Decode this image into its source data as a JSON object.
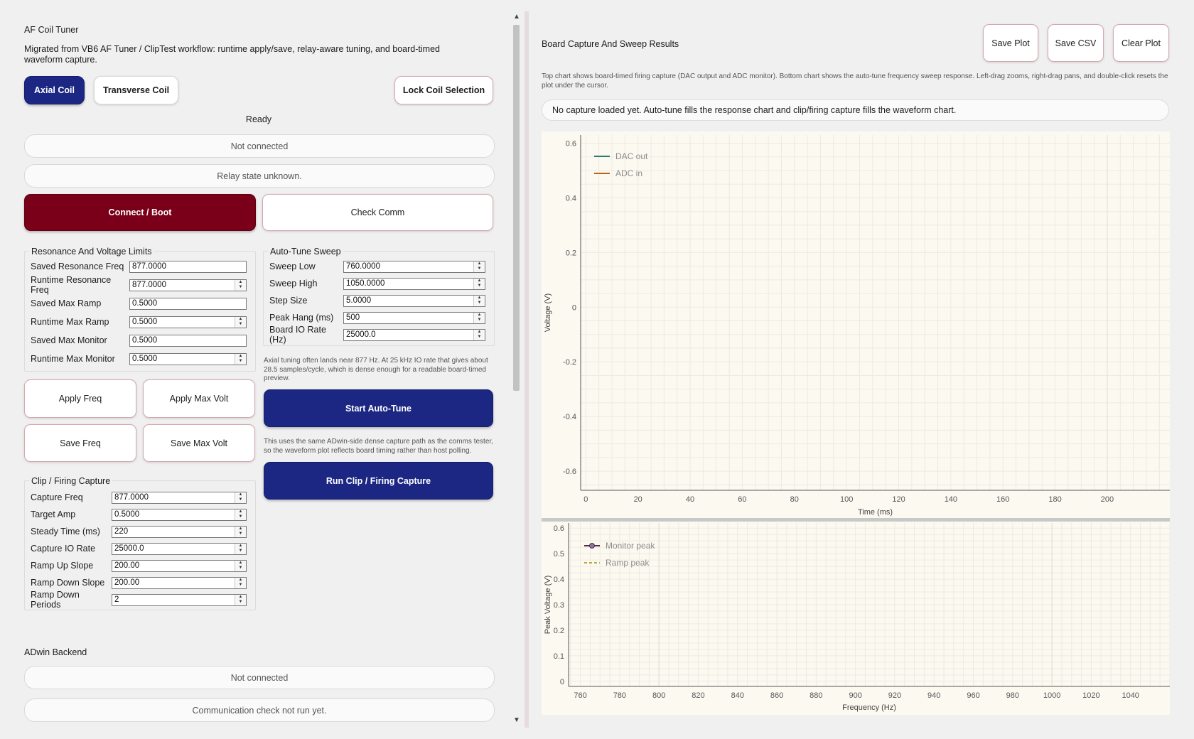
{
  "app": {
    "title": "AF Coil Tuner",
    "description": "Migrated from VB6 AF Tuner / ClipTest workflow: runtime apply/save, relay-aware tuning, and board-timed waveform capture."
  },
  "coil": {
    "axial_label": "Axial Coil",
    "transverse_label": "Transverse Coil",
    "lock_label": "Lock Coil Selection",
    "selected": "Axial Coil"
  },
  "status": {
    "ready": "Ready",
    "connection": "Not connected",
    "relay": "Relay state unknown."
  },
  "actions": {
    "connect_label": "Connect / Boot",
    "check_comm_label": "Check Comm"
  },
  "resonance": {
    "title": "Resonance And Voltage Limits",
    "fields": [
      {
        "label": "Saved Resonance Freq",
        "value": "877.0000",
        "spin": false
      },
      {
        "label": "Runtime Resonance Freq",
        "value": "877.0000",
        "spin": true
      },
      {
        "label": "Saved Max Ramp",
        "value": "0.5000",
        "spin": false
      },
      {
        "label": "Runtime Max Ramp",
        "value": "0.5000",
        "spin": true
      },
      {
        "label": "Saved Max Monitor",
        "value": "0.5000",
        "spin": false
      },
      {
        "label": "Runtime Max Monitor",
        "value": "0.5000",
        "spin": true
      }
    ]
  },
  "sweep": {
    "title": "Auto-Tune Sweep",
    "fields": [
      {
        "label": "Sweep Low",
        "value": "760.0000"
      },
      {
        "label": "Sweep High",
        "value": "1050.0000"
      },
      {
        "label": "Step Size",
        "value": "5.0000"
      },
      {
        "label": "Peak Hang (ms)",
        "value": "500"
      },
      {
        "label": "Board IO Rate (Hz)",
        "value": "25000.0"
      }
    ],
    "note": "Axial tuning often lands near 877 Hz. At 25 kHz IO rate that gives about 28.5 samples/cycle, which is dense enough for a readable board-timed preview."
  },
  "apply": {
    "apply_freq": "Apply Freq",
    "apply_max_volt": "Apply Max Volt",
    "save_freq": "Save Freq",
    "save_max_volt": "Save Max Volt"
  },
  "autotune": {
    "start_label": "Start Auto-Tune",
    "capture_note": "This uses the same ADwin-side dense capture path as the comms tester, so the waveform plot reflects board timing rather than host polling.",
    "run_capture_label": "Run Clip / Firing Capture"
  },
  "clip": {
    "title": "Clip / Firing Capture",
    "fields": [
      {
        "label": "Capture Freq",
        "value": "877.0000"
      },
      {
        "label": "Target Amp",
        "value": "0.5000"
      },
      {
        "label": "Steady Time (ms)",
        "value": "220"
      },
      {
        "label": "Capture IO Rate",
        "value": "25000.0"
      },
      {
        "label": "Ramp Up Slope",
        "value": "200.00"
      },
      {
        "label": "Ramp Down Slope",
        "value": "200.00"
      },
      {
        "label": "Ramp Down Periods",
        "value": "2"
      }
    ]
  },
  "adwin": {
    "title": "ADwin Backend",
    "connection": "Not connected",
    "comm": "Communication check not run yet."
  },
  "results": {
    "title": "Board Capture And Sweep Results",
    "save_plot": "Save Plot",
    "save_csv": "Save CSV",
    "clear_plot": "Clear Plot",
    "description": "Top chart shows board-timed firing capture (DAC output and ADC monitor). Bottom chart shows the auto-tune frequency sweep response. Left-drag zooms, right-drag pans, and double-click resets the plot under the cursor.",
    "status": "No capture loaded yet. Auto-tune fills the response chart and clip/firing capture fills the waveform chart."
  },
  "chart_data": [
    {
      "type": "line",
      "title": "",
      "xlabel": "Time (ms)",
      "ylabel": "Voltage (V)",
      "xlim": [
        -2,
        224
      ],
      "ylim": [
        -0.67,
        0.63
      ],
      "x_ticks": [
        0,
        20,
        40,
        60,
        80,
        100,
        120,
        140,
        160,
        180,
        200
      ],
      "y_ticks": [
        0.6,
        0.4,
        0.2,
        0,
        -0.2,
        -0.4,
        -0.6
      ],
      "y_tick_labels": [
        "0.6",
        "0.4",
        "0.2",
        "0",
        "-0.2",
        "-0.4",
        "-0.6"
      ],
      "grid": true,
      "legend": "top-left",
      "series": [
        {
          "name": "DAC out",
          "color": "#2c7a7b",
          "values": []
        },
        {
          "name": "ADC in",
          "color": "#b8651b",
          "values": []
        }
      ]
    },
    {
      "type": "line",
      "title": "",
      "xlabel": "Frequency (Hz)",
      "ylabel": "Peak Voltage (V)",
      "xlim": [
        754,
        1060
      ],
      "ylim": [
        -0.02,
        0.62
      ],
      "x_ticks": [
        760,
        780,
        800,
        820,
        840,
        860,
        880,
        900,
        920,
        940,
        960,
        980,
        1000,
        1020,
        1040
      ],
      "y_ticks": [
        0.6,
        0.5,
        0.4,
        0.3,
        0.2,
        0.1,
        0
      ],
      "y_tick_labels": [
        "0.6",
        "0.5",
        "0.4",
        "0.3",
        "0.2",
        "0.1",
        "0"
      ],
      "grid": true,
      "legend": "top-left",
      "series": [
        {
          "name": "Monitor peak",
          "color": "#5a2a4a",
          "values": []
        },
        {
          "name": "Ramp peak",
          "color": "#b5a642",
          "values": []
        }
      ]
    }
  ]
}
